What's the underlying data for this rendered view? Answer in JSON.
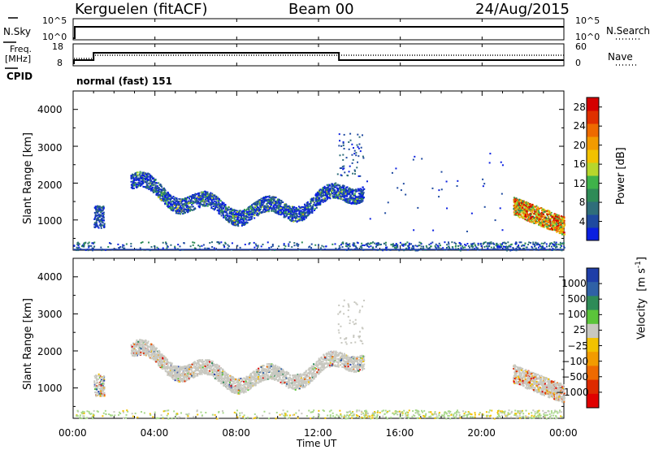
{
  "header": {
    "station": "Kerguelen (fitACF)",
    "beam": "Beam 00",
    "date": "24/Aug/2015"
  },
  "top_panels": {
    "nsky_label": "N.Sky",
    "nsky_ticks": [
      "10^5",
      "10^0"
    ],
    "nsearch_label": "N.Search",
    "nsearch_ticks": [
      "10^5",
      "10^0"
    ],
    "freq_label_1": "Freq.",
    "freq_label_2": "[MHz]",
    "freq_ticks": [
      "18",
      "8"
    ],
    "nave_label": "Nave",
    "nave_ticks": [
      "60",
      "0"
    ],
    "cpid_label": "CPID",
    "cpid_text": "normal (fast) 151"
  },
  "colors": {
    "power": [
      "#0a1fe0",
      "#1f4aa0",
      "#2f6e7a",
      "#2e8b57",
      "#3fb24a",
      "#b7d62c",
      "#f2c200",
      "#f29b00",
      "#ee6a00",
      "#e03000",
      "#d40000"
    ],
    "velocity": [
      "#1f3ea8",
      "#2f61a6",
      "#2e8b57",
      "#5bc43a",
      "#c8c8c0",
      "#f2c200",
      "#f29b00",
      "#ee6a00",
      "#dd2a00",
      "#e00000"
    ],
    "gray_scatter": "#c8c8c0"
  },
  "chart_data": [
    {
      "type": "heatmap",
      "title": "Power",
      "xlabel": "Time UT",
      "ylabel": "Slant Range [km]",
      "x_ticks": [
        "00:00",
        "04:00",
        "08:00",
        "12:00",
        "16:00",
        "20:00",
        "00:00"
      ],
      "xlim_hours": [
        0,
        24
      ],
      "y_ticks": [
        "1000",
        "2000",
        "3000",
        "4000"
      ],
      "ylim_km": [
        180,
        4500
      ],
      "colorbar_label": "Power [dB]",
      "colorbar_ticks": [
        "4",
        "8",
        "12",
        "16",
        "20",
        "24",
        "28"
      ],
      "colorbar_range": [
        0,
        30
      ],
      "scatter_regions": [
        {
          "t_start": 1.0,
          "t_end": 1.5,
          "r_low": 800,
          "r_high": 1400,
          "level": "low"
        },
        {
          "t_start": 2.8,
          "t_end": 14.2,
          "r_low": 900,
          "r_high": 2300,
          "level": "mixed"
        },
        {
          "t_start": 21.5,
          "t_end": 24.0,
          "r_low": 600,
          "r_high": 1500,
          "level": "high"
        },
        {
          "t_start": 0.0,
          "t_end": 24.0,
          "r_low": 180,
          "r_high": 400,
          "level": "low"
        }
      ]
    },
    {
      "type": "heatmap",
      "title": "Velocity",
      "xlabel": "Time UT",
      "ylabel": "Slant Range [km]",
      "x_ticks": [
        "00:00",
        "04:00",
        "08:00",
        "12:00",
        "16:00",
        "20:00",
        "00:00"
      ],
      "xlim_hours": [
        0,
        24
      ],
      "y_ticks": [
        "1000",
        "2000",
        "3000",
        "4000"
      ],
      "ylim_km": [
        180,
        4500
      ],
      "colorbar_label_main": "Velocity",
      "colorbar_label_unit": "[m s",
      "colorbar_label_sup": "-1",
      "colorbar_label_end": "]",
      "colorbar_ticks": [
        "1000",
        "500",
        "100",
        "25",
        "−25",
        "−100",
        "−500",
        "−1000"
      ]
    }
  ],
  "x_axis_title": "Time UT"
}
